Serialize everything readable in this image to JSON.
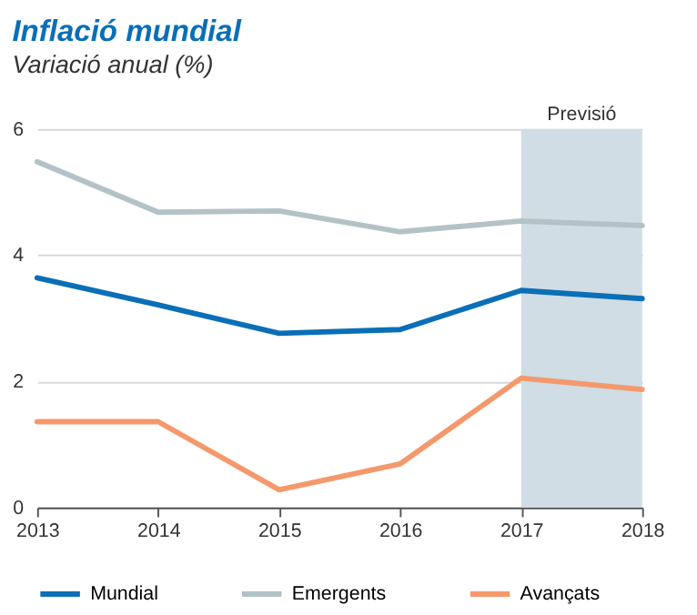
{
  "chart_data": {
    "type": "line",
    "title": "Inflació mundial",
    "subtitle": "Variació anual (%)",
    "x": [
      2013,
      2014,
      2015,
      2016,
      2017,
      2018
    ],
    "series": [
      {
        "name": "Mundial",
        "color": "#0a6fb7",
        "values": [
          3.64,
          3.21,
          2.76,
          2.82,
          3.44,
          3.31
        ]
      },
      {
        "name": "Emergents",
        "color": "#b3c2c6",
        "values": [
          5.48,
          4.68,
          4.7,
          4.37,
          4.54,
          4.47
        ]
      },
      {
        "name": "Avançats",
        "color": "#f4996b",
        "values": [
          1.36,
          1.36,
          0.28,
          0.69,
          2.05,
          1.87
        ]
      }
    ],
    "xlim": [
      2013,
      2018
    ],
    "xticks": [
      2013,
      2014,
      2015,
      2016,
      2017,
      2018
    ],
    "ylim": [
      0,
      6
    ],
    "yticks": [
      0,
      2,
      4,
      6
    ],
    "bands": [
      {
        "axis": "x",
        "from": 2017,
        "to": 2018,
        "label": "Previsió",
        "color": "#d0dde4"
      }
    ],
    "grid": "y",
    "legend": "bottom",
    "marker": "none",
    "line_style": "solid"
  }
}
